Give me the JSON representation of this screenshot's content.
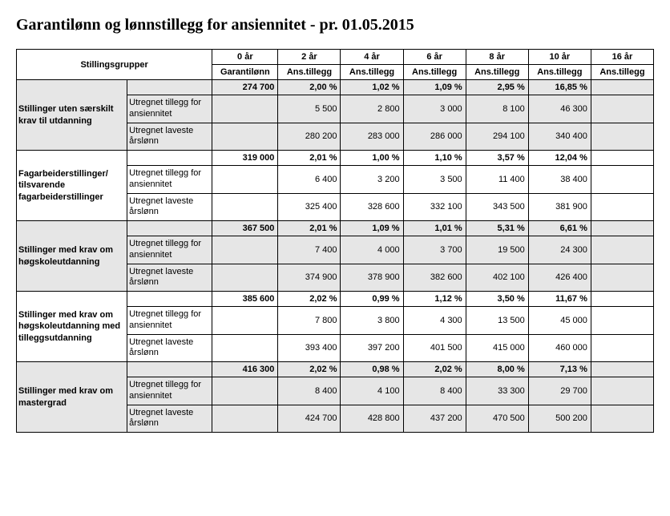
{
  "title": "Garantilønn og lønnstillegg for ansiennitet - pr. 01.05.2015",
  "header": {
    "corner": "Stillingsgrupper",
    "years": [
      "0 år",
      "2 år",
      "4 år",
      "6 år",
      "8 år",
      "10 år",
      "16 år"
    ],
    "subs": [
      "Garantilønn",
      "Ans.tillegg",
      "Ans.tillegg",
      "Ans.tillegg",
      "Ans.tillegg",
      "Ans.tillegg",
      "Ans.tillegg"
    ]
  },
  "row_labels": {
    "tillegg": "Utregnet tillegg for ansiennitet",
    "laveste": "Utregnet laveste årslønn"
  },
  "groups": [
    {
      "name": "Stillinger uten særskilt krav til utdanning",
      "pct": [
        "274 700",
        "2,00 %",
        "1,02 %",
        "1,09 %",
        "2,95 %",
        "16,85 %",
        ""
      ],
      "tillegg": [
        "",
        "5 500",
        "2 800",
        "3 000",
        "8 100",
        "46 300",
        ""
      ],
      "laveste": [
        "",
        "280 200",
        "283 000",
        "286 000",
        "294 100",
        "340 400",
        ""
      ]
    },
    {
      "name": "Fagarbeiderstillinger/ tilsvarende fagarbeiderstillinger",
      "pct": [
        "319 000",
        "2,01 %",
        "1,00 %",
        "1,10 %",
        "3,57 %",
        "12,04 %",
        ""
      ],
      "tillegg": [
        "",
        "6 400",
        "3 200",
        "3 500",
        "11 400",
        "38 400",
        ""
      ],
      "laveste": [
        "",
        "325 400",
        "328 600",
        "332 100",
        "343 500",
        "381 900",
        ""
      ]
    },
    {
      "name": "Stillinger med krav om høgskoleutdanning",
      "pct": [
        "367 500",
        "2,01 %",
        "1,09 %",
        "1,01 %",
        "5,31 %",
        "6,61 %",
        ""
      ],
      "tillegg": [
        "",
        "7 400",
        "4 000",
        "3 700",
        "19 500",
        "24 300",
        ""
      ],
      "laveste": [
        "",
        "374 900",
        "378 900",
        "382 600",
        "402 100",
        "426 400",
        ""
      ]
    },
    {
      "name": "Stillinger med krav om høgskoleutdanning med tilleggsutdanning",
      "pct": [
        "385 600",
        "2,02 %",
        "0,99 %",
        "1,12 %",
        "3,50 %",
        "11,67 %",
        ""
      ],
      "tillegg": [
        "",
        "7 800",
        "3 800",
        "4 300",
        "13 500",
        "45 000",
        ""
      ],
      "laveste": [
        "",
        "393 400",
        "397 200",
        "401 500",
        "415 000",
        "460 000",
        ""
      ]
    },
    {
      "name": "Stillinger med krav om mastergrad",
      "pct": [
        "416 300",
        "2,02 %",
        "0,98 %",
        "2,02 %",
        "8,00 %",
        "7,13 %",
        ""
      ],
      "tillegg": [
        "",
        "8 400",
        "4 100",
        "8 400",
        "33 300",
        "29 700",
        ""
      ],
      "laveste": [
        "",
        "424 700",
        "428 800",
        "437 200",
        "470 500",
        "500 200",
        ""
      ]
    }
  ]
}
